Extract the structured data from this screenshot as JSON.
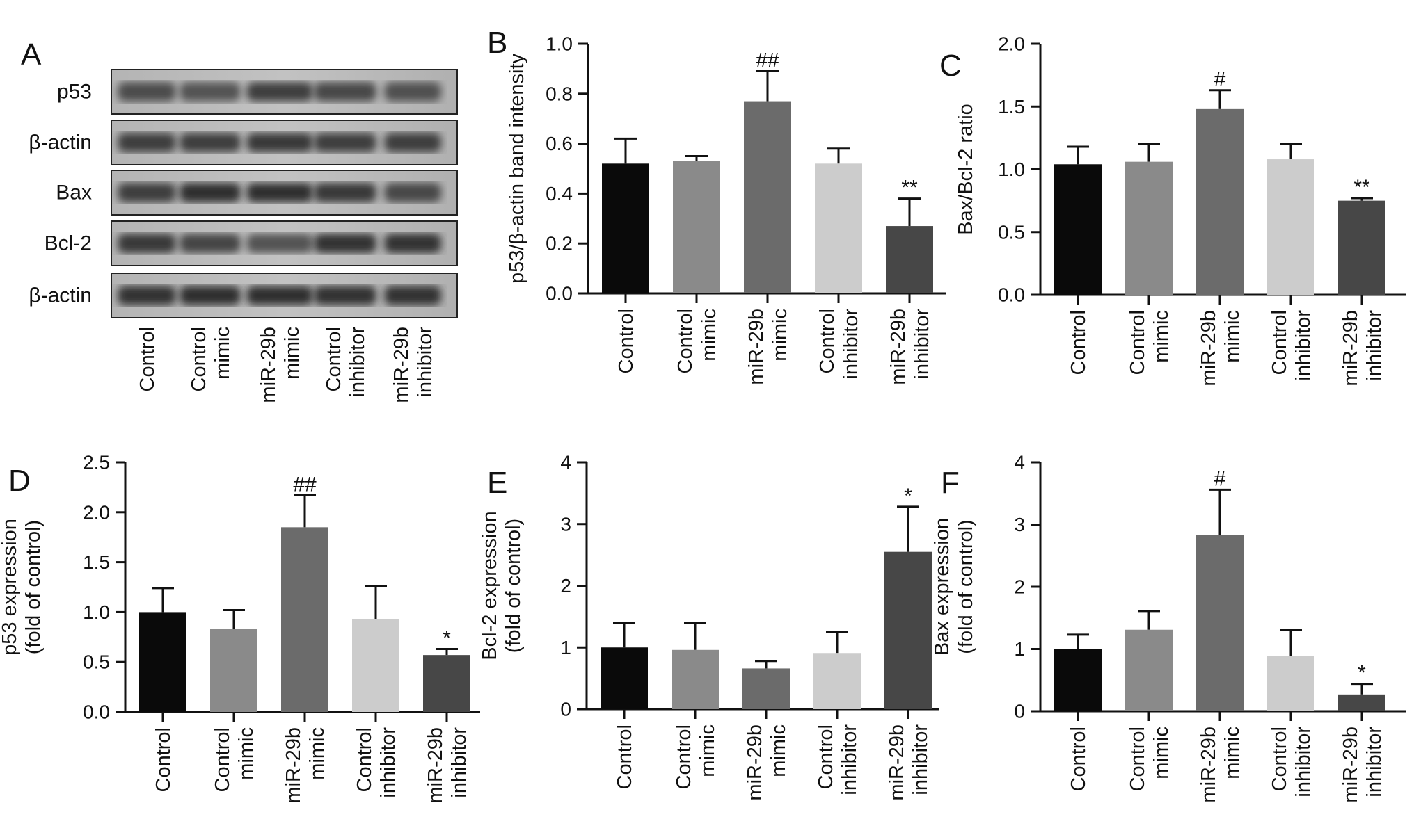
{
  "panels": {
    "A": {
      "letter": "A",
      "rows": [
        "p53",
        "β-actin",
        "Bax",
        "Bcl-2",
        "β-actin"
      ],
      "lanes": [
        [
          "Control"
        ],
        [
          "Control",
          "mimic"
        ],
        [
          "miR-29b",
          "mimic"
        ],
        [
          "Control",
          "inhibitor"
        ],
        [
          "miR-29b",
          "inhibitor"
        ]
      ]
    },
    "B": {
      "letter": "B"
    },
    "C": {
      "letter": "C"
    },
    "D": {
      "letter": "D"
    },
    "E": {
      "letter": "E"
    },
    "F": {
      "letter": "F"
    }
  },
  "chart_data": [
    {
      "panel": "B",
      "type": "bar",
      "categories": [
        [
          "Control"
        ],
        [
          "Control",
          "mimic"
        ],
        [
          "miR-29b",
          "mimic"
        ],
        [
          "Control",
          "inhibitor"
        ],
        [
          "miR-29b",
          "inhibitor"
        ]
      ],
      "values": [
        0.52,
        0.53,
        0.77,
        0.52,
        0.27
      ],
      "errors": [
        0.1,
        0.02,
        0.12,
        0.06,
        0.11
      ],
      "annotations": [
        "",
        "",
        "##",
        "",
        "**"
      ],
      "ylabel": [
        "p53/β-actin band intensity"
      ],
      "ylim": [
        0,
        1.0
      ],
      "yticks": [
        "0.0",
        "0.2",
        "0.4",
        "0.6",
        "0.8",
        "1.0"
      ],
      "colors": [
        "#0a0a0a",
        "#8a8a8a",
        "#6b6b6b",
        "#cccccc",
        "#474747"
      ]
    },
    {
      "panel": "C",
      "type": "bar",
      "categories": [
        [
          "Control"
        ],
        [
          "Control",
          "mimic"
        ],
        [
          "miR-29b",
          "mimic"
        ],
        [
          "Control",
          "inhibitor"
        ],
        [
          "miR-29b",
          "inhibitor"
        ]
      ],
      "values": [
        1.04,
        1.06,
        1.48,
        1.08,
        0.75
      ],
      "errors": [
        0.14,
        0.14,
        0.15,
        0.12,
        0.02
      ],
      "annotations": [
        "",
        "",
        "#",
        "",
        "**"
      ],
      "ylabel": [
        "Bax/Bcl-2 ratio"
      ],
      "ylim": [
        0,
        2.0
      ],
      "yticks": [
        "0.0",
        "0.5",
        "1.0",
        "1.5",
        "2.0"
      ],
      "colors": [
        "#0a0a0a",
        "#8a8a8a",
        "#6b6b6b",
        "#cccccc",
        "#474747"
      ]
    },
    {
      "panel": "D",
      "type": "bar",
      "categories": [
        [
          "Control"
        ],
        [
          "Control",
          "mimic"
        ],
        [
          "miR-29b",
          "mimic"
        ],
        [
          "Control",
          "inhibitor"
        ],
        [
          "miR-29b",
          "inhibitor"
        ]
      ],
      "values": [
        1.0,
        0.83,
        1.85,
        0.93,
        0.57
      ],
      "errors": [
        0.24,
        0.19,
        0.32,
        0.33,
        0.06
      ],
      "annotations": [
        "",
        "",
        "##",
        "",
        "*"
      ],
      "ylabel": [
        "p53 expression",
        "(fold of control)"
      ],
      "ylim": [
        0,
        2.5
      ],
      "yticks": [
        "0.0",
        "0.5",
        "1.0",
        "1.5",
        "2.0",
        "2.5"
      ],
      "colors": [
        "#0a0a0a",
        "#8a8a8a",
        "#6b6b6b",
        "#cccccc",
        "#474747"
      ]
    },
    {
      "panel": "E",
      "type": "bar",
      "categories": [
        [
          "Control"
        ],
        [
          "Control",
          "mimic"
        ],
        [
          "miR-29b",
          "mimic"
        ],
        [
          "Control",
          "inhibitor"
        ],
        [
          "miR-29b",
          "inhibitor"
        ]
      ],
      "values": [
        1.0,
        0.96,
        0.66,
        0.91,
        2.55
      ],
      "errors": [
        0.4,
        0.44,
        0.12,
        0.34,
        0.73
      ],
      "annotations": [
        "",
        "",
        "",
        "",
        "*"
      ],
      "ylabel": [
        "Bcl-2 expression",
        "(fold of control)"
      ],
      "ylim": [
        0,
        4
      ],
      "yticks": [
        "0",
        "1",
        "2",
        "3",
        "4"
      ],
      "colors": [
        "#0a0a0a",
        "#8a8a8a",
        "#6b6b6b",
        "#cccccc",
        "#474747"
      ]
    },
    {
      "panel": "F",
      "type": "bar",
      "categories": [
        [
          "Control"
        ],
        [
          "Control",
          "mimic"
        ],
        [
          "miR-29b",
          "mimic"
        ],
        [
          "Control",
          "inhibitor"
        ],
        [
          "miR-29b",
          "inhibitor"
        ]
      ],
      "values": [
        1.0,
        1.31,
        2.83,
        0.89,
        0.27
      ],
      "errors": [
        0.23,
        0.3,
        0.73,
        0.42,
        0.17
      ],
      "annotations": [
        "",
        "",
        "#",
        "",
        "*"
      ],
      "ylabel": [
        "Bax expression",
        "(fold of control)"
      ],
      "ylim": [
        0,
        4
      ],
      "yticks": [
        "0",
        "1",
        "2",
        "3",
        "4"
      ],
      "colors": [
        "#0a0a0a",
        "#8a8a8a",
        "#6b6b6b",
        "#cccccc",
        "#474747"
      ]
    }
  ]
}
